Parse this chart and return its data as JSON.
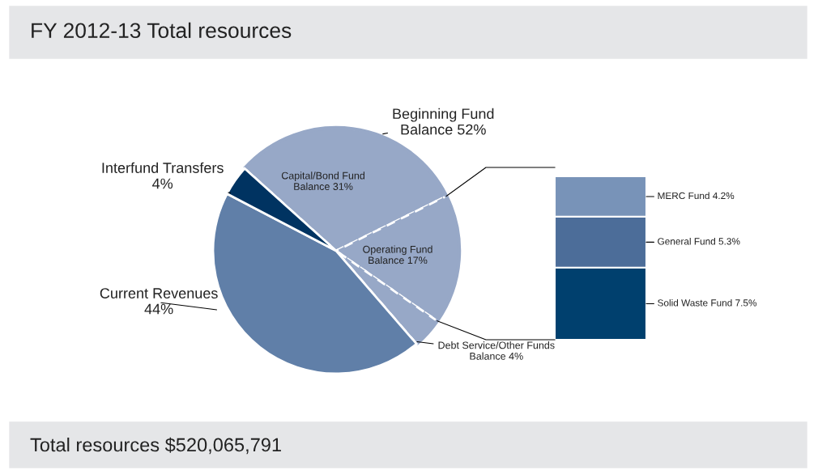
{
  "chart_data": [
    {
      "type": "pie",
      "title": "FY 2012-13 Total resources",
      "categories": [
        "Capital/Bond Fund\nBalance 31%",
        "Operating Fund\nBalance 17%",
        "Debt Service/Other Funds\nBalance 4%",
        "Current Revenues\n44%",
        "Interfund Transfers\n4%"
      ],
      "values": [
        31,
        17,
        4,
        44,
        4
      ],
      "colors": [
        "#97a8c7",
        "#97a8c7",
        "#97a8c7",
        "#607fa8",
        "#003361"
      ],
      "annotations": [
        {
          "text": "Beginning Fund\nBalance 52%"
        },
        "Total resources $520,065,791"
      ]
    },
    {
      "type": "bar",
      "stacked": true,
      "categories": [
        null
      ],
      "series": [
        {
          "color": "#00406e",
          "values": [
            7.5
          ],
          "value_labels": [
            "Solid Waste Fund 7.5%"
          ]
        },
        {
          "color": "#4c6d99",
          "values": [
            5.3
          ],
          "value_labels": [
            "General Fund 5.3%"
          ]
        },
        {
          "color": "#7893b8",
          "values": [
            4.2
          ],
          "value_labels": [
            "MERC Fund 4.2%"
          ]
        }
      ]
    }
  ]
}
